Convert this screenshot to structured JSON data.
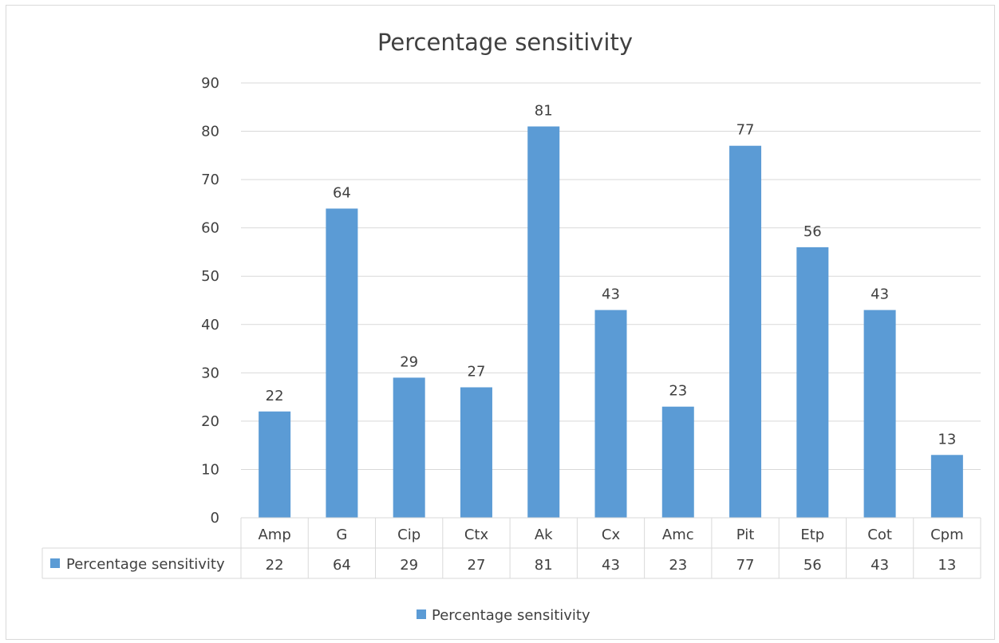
{
  "chart_data": {
    "type": "bar",
    "title": "Percentage sensitivity",
    "xlabel": "",
    "ylabel": "",
    "categories": [
      "Amp",
      "G",
      "Cip",
      "Ctx",
      "Ak",
      "Cx",
      "Amc",
      "Pit",
      "Etp",
      "Cot",
      "Cpm"
    ],
    "series": [
      {
        "name": "Percentage sensitivity",
        "values": [
          22,
          64,
          29,
          27,
          81,
          43,
          23,
          77,
          56,
          43,
          13
        ]
      }
    ],
    "ylim": [
      0,
      90
    ],
    "yticks": [
      0,
      10,
      20,
      30,
      40,
      50,
      60,
      70,
      80,
      90
    ],
    "data_labels": true,
    "data_table": true,
    "grid": true,
    "legend_position": "bottom",
    "colors": {
      "bar": "#5b9bd5",
      "grid": "#d9d9d9",
      "text": "#404040"
    }
  }
}
